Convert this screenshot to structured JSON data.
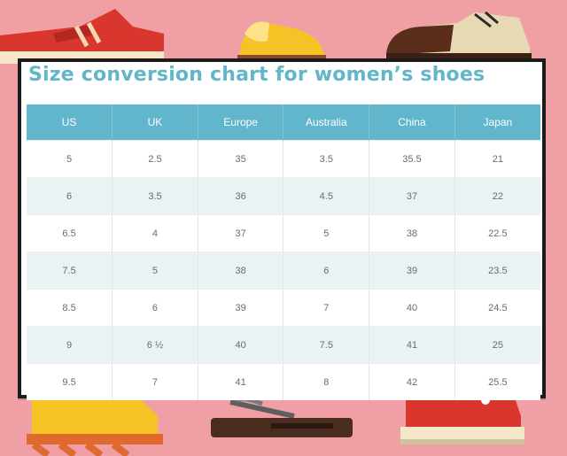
{
  "title": "Size conversion chart for women’s shoes",
  "table": {
    "headers": [
      "US",
      "UK",
      "Europe",
      "Australia",
      "China",
      "Japan"
    ],
    "rows": [
      [
        "5",
        "2.5",
        "35",
        "3.5",
        "35.5",
        "21"
      ],
      [
        "6",
        "3.5",
        "36",
        "4.5",
        "37",
        "22"
      ],
      [
        "6.5",
        "4",
        "37",
        "5",
        "38",
        "22.5"
      ],
      [
        "7.5",
        "5",
        "38",
        "6",
        "39",
        "23.5"
      ],
      [
        "8.5",
        "6",
        "39",
        "7",
        "40",
        "24.5"
      ],
      [
        "9",
        "6 ½",
        "40",
        "7.5",
        "41",
        "25"
      ],
      [
        "9.5",
        "7",
        "41",
        "8",
        "42",
        "25.5"
      ]
    ]
  },
  "colors": {
    "background": "#f0a0a5",
    "header": "#61b6cb",
    "title": "#62b6c8",
    "stripe": "#eaf2f4"
  },
  "illustrations": [
    "red-sneaker-icon",
    "yellow-slipper-icon",
    "brown-oxford-shoe-icon",
    "yellow-boot-icon",
    "flip-flop-icon",
    "red-high-top-sneaker-icon"
  ]
}
